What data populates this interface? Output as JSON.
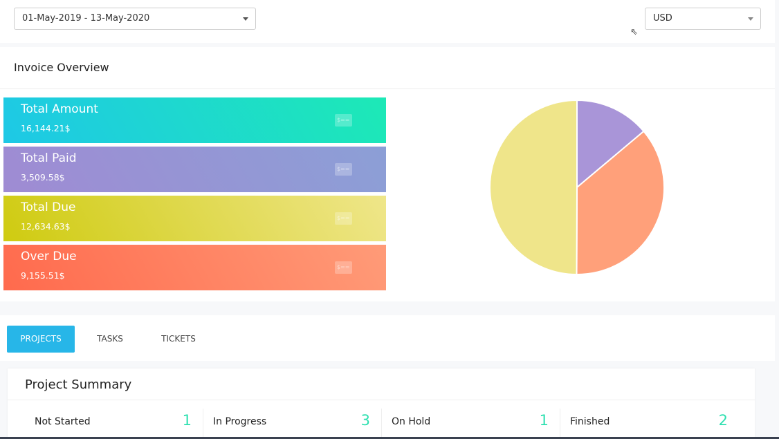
{
  "filters": {
    "date_range": "01-May-2019 - 13-May-2020",
    "currency": "USD"
  },
  "invoice_overview": {
    "title": "Invoice Overview",
    "stats": [
      {
        "label": "Total Amount",
        "value": "16,144.21$",
        "gradient": [
          "#1ec8e6",
          "#1de9b6"
        ]
      },
      {
        "label": "Total Paid",
        "value": "3,509.58$",
        "gradient": [
          "#9f8bd3",
          "#8c9fd6"
        ]
      },
      {
        "label": "Total Due",
        "value": "12,634.63$",
        "gradient": [
          "#cfcb10",
          "#efe68a"
        ]
      },
      {
        "label": "Over Due",
        "value": "9,155.51$",
        "gradient": [
          "#ff6a4d",
          "#ff9b78"
        ]
      }
    ],
    "icon_text": "$=="
  },
  "chart_data": {
    "type": "pie",
    "slices": [
      {
        "name": "Total Paid",
        "value": 3509.58,
        "color": "#a995d8"
      },
      {
        "name": "Over Due",
        "value": 9155.51,
        "color": "#ffa07a"
      },
      {
        "name": "Total Due",
        "value": 12634.63,
        "color": "#efe58a"
      }
    ]
  },
  "tabs": [
    {
      "label": "PROJECTS",
      "active": true
    },
    {
      "label": "TASKS"
    },
    {
      "label": "TICKETS"
    }
  ],
  "project_summary": {
    "title": "Project Summary",
    "items": [
      {
        "label": "Not Started",
        "count": "1"
      },
      {
        "label": "In Progress",
        "count": "3"
      },
      {
        "label": "On Hold",
        "count": "1"
      },
      {
        "label": "Finished",
        "count": "2"
      }
    ]
  }
}
